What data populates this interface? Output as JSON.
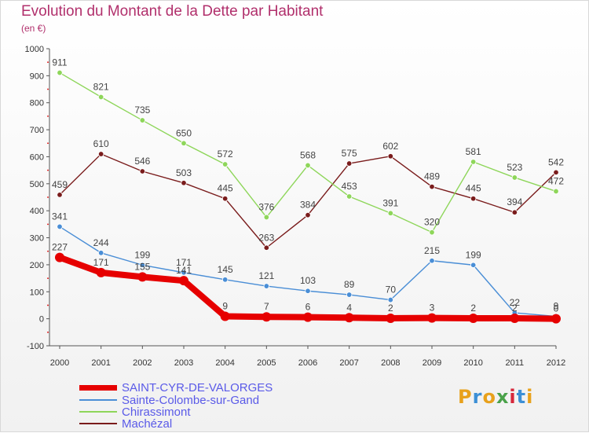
{
  "title": "Evolution du Montant de la Dette par Habitant",
  "subtitle": "(en €)",
  "logo": {
    "text": "Proxiti",
    "colors": [
      "#e8a11c",
      "#3c8fd6",
      "#e8a11c",
      "#4aa24a",
      "#d6283c",
      "#3c8fd6",
      "#e8a11c"
    ]
  },
  "chart_data": {
    "type": "line",
    "x": [
      "2000",
      "2001",
      "2002",
      "2003",
      "2004",
      "2005",
      "2006",
      "2007",
      "2008",
      "2009",
      "2010",
      "2011",
      "2012"
    ],
    "ylim": [
      -100,
      1000
    ],
    "yticks": [
      "-100",
      "0",
      "100",
      "200",
      "300",
      "400",
      "500",
      "600",
      "700",
      "800",
      "900",
      "1000"
    ],
    "grid": false,
    "legend_position": "bottom-left",
    "series": [
      {
        "name": "SAINT-CYR-DE-VALORGES",
        "color": "#e60000",
        "values": [
          227,
          171,
          155,
          141,
          9,
          7,
          6,
          4,
          2,
          3,
          2,
          2,
          0
        ],
        "labels": [
          "227",
          "171",
          "155",
          "141",
          "9",
          "7",
          "6",
          "4",
          "2",
          "3",
          "2",
          "2",
          "0"
        ]
      },
      {
        "name": "Sainte-Colombe-sur-Gand",
        "color": "#4a8ed6",
        "values": [
          341,
          244,
          199,
          171,
          145,
          121,
          103,
          89,
          70,
          215,
          199,
          22,
          9
        ],
        "labels": [
          "341",
          "244",
          "199",
          "171",
          "145",
          "121",
          "103",
          "89",
          "70",
          "215",
          "199",
          "22",
          "9"
        ]
      },
      {
        "name": "Chirassimont",
        "color": "#8ed65a",
        "values": [
          911,
          821,
          735,
          650,
          572,
          376,
          568,
          453,
          391,
          320,
          581,
          523,
          472
        ],
        "labels": [
          "911",
          "821",
          "735",
          "650",
          "572",
          "376",
          "568",
          "453",
          "391",
          "320",
          "581",
          "523",
          "472"
        ]
      },
      {
        "name": "Machézal",
        "color": "#7a1c1c",
        "values": [
          459,
          610,
          546,
          503,
          445,
          263,
          384,
          575,
          602,
          489,
          445,
          394,
          542
        ],
        "labels": [
          "459",
          "610",
          "546",
          "503",
          "445",
          "263",
          "384",
          "575",
          "602",
          "489",
          "445",
          "394",
          "542"
        ]
      }
    ]
  }
}
